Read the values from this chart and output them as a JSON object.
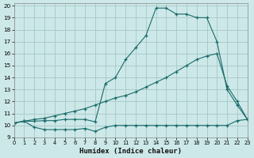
{
  "background_color": "#cde8e8",
  "grid_color": "#aacccc",
  "line_color": "#1a6b6b",
  "xlabel": "Humidex (Indice chaleur)",
  "xlim": [
    0,
    23
  ],
  "ylim": [
    9,
    20.2
  ],
  "yticks": [
    9,
    10,
    11,
    12,
    13,
    14,
    15,
    16,
    17,
    18,
    19,
    20
  ],
  "xticks": [
    0,
    1,
    2,
    3,
    4,
    5,
    6,
    7,
    8,
    9,
    10,
    11,
    12,
    13,
    14,
    15,
    16,
    17,
    18,
    19,
    20,
    21,
    22,
    23
  ],
  "line1_x": [
    0,
    1,
    2,
    3,
    4,
    5,
    6,
    7,
    8,
    9,
    10,
    11,
    12,
    13,
    14,
    15,
    16,
    17,
    18,
    19,
    20,
    21,
    22,
    23
  ],
  "line1_y": [
    10.2,
    10.35,
    9.85,
    9.65,
    9.65,
    9.65,
    9.65,
    9.75,
    9.5,
    9.85,
    10.0,
    10.0,
    10.0,
    10.0,
    10.0,
    10.0,
    10.0,
    10.0,
    10.0,
    10.0,
    10.0,
    10.0,
    10.4,
    10.5
  ],
  "line2_x": [
    0,
    1,
    2,
    3,
    4,
    5,
    6,
    7,
    8,
    9,
    10,
    11,
    12,
    13,
    14,
    15,
    16,
    17,
    18,
    19,
    20,
    21,
    22,
    23
  ],
  "line2_y": [
    10.2,
    10.35,
    10.35,
    10.4,
    10.4,
    10.5,
    10.5,
    10.5,
    10.3,
    13.5,
    14.0,
    15.5,
    16.5,
    17.5,
    19.8,
    19.8,
    19.3,
    19.3,
    19.0,
    19.0,
    17.0,
    13.0,
    11.7,
    10.5
  ],
  "line3_x": [
    0,
    1,
    2,
    3,
    4,
    5,
    6,
    7,
    8,
    9,
    10,
    11,
    12,
    13,
    14,
    15,
    16,
    17,
    18,
    19,
    20,
    21,
    22,
    23
  ],
  "line3_y": [
    10.2,
    10.35,
    10.5,
    10.6,
    10.8,
    11.0,
    11.2,
    11.4,
    11.7,
    12.0,
    12.3,
    12.5,
    12.8,
    13.2,
    13.6,
    14.0,
    14.5,
    15.0,
    15.5,
    15.8,
    16.0,
    13.3,
    12.0,
    10.5
  ]
}
